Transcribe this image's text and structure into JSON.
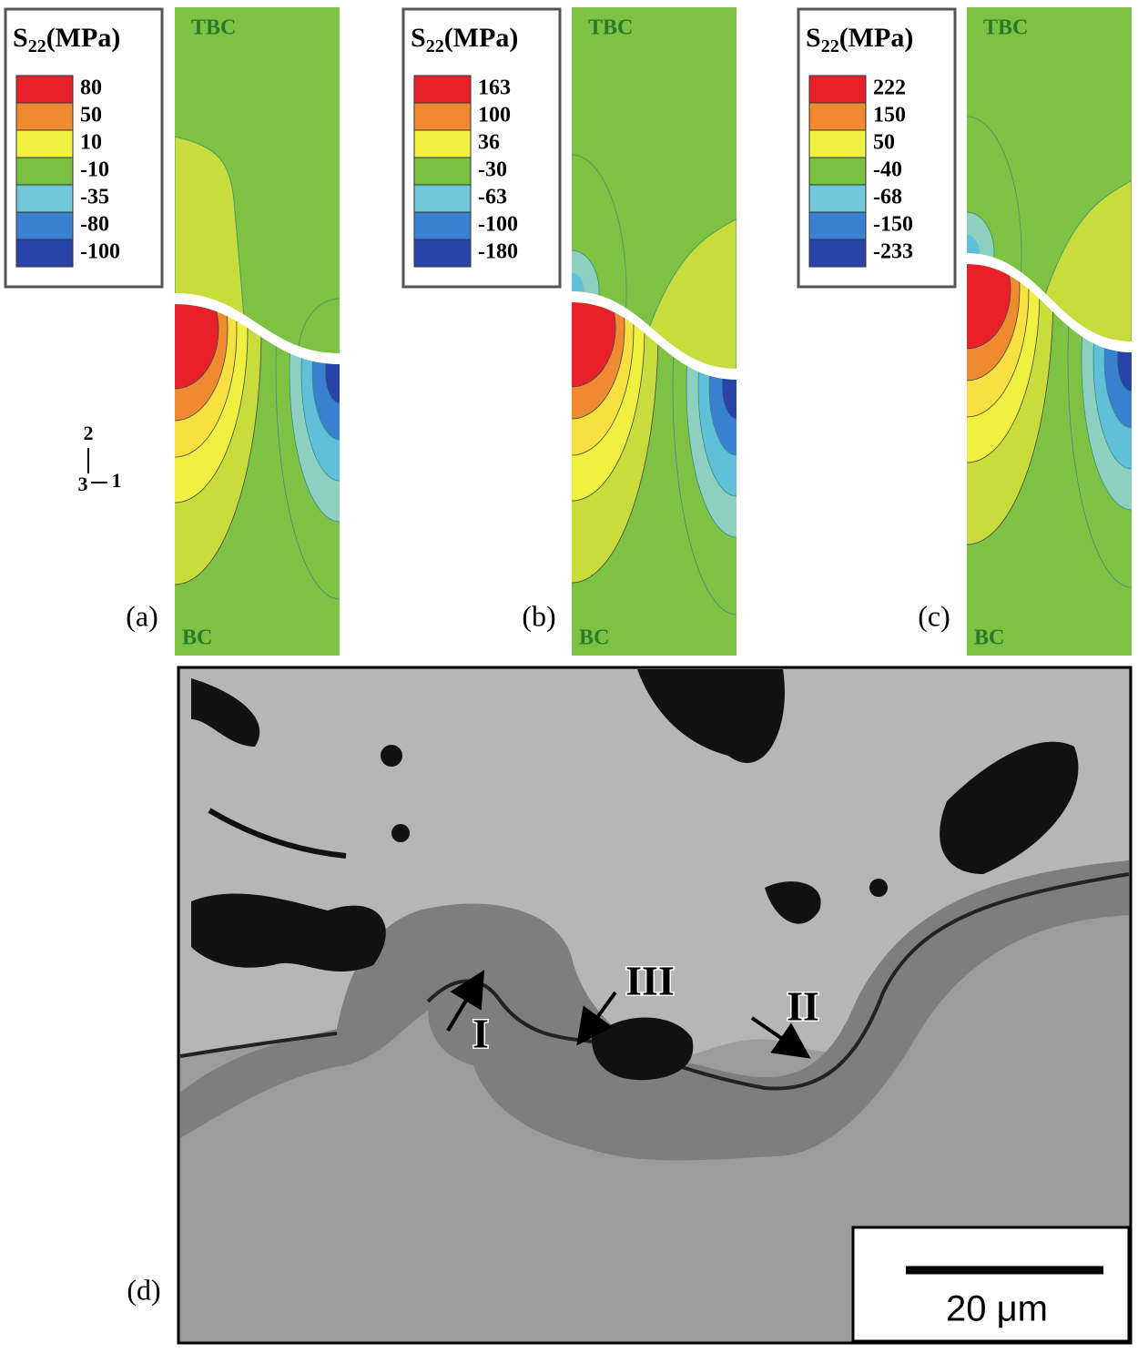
{
  "panels": [
    {
      "label": "(a)",
      "top_label": "TBC",
      "bottom_label": "BC",
      "legend": {
        "symbol": "S",
        "subscript": "22",
        "unit": "(MPa)",
        "values": [
          "80",
          "50",
          "10",
          "-10",
          "-35",
          "-80",
          "-100"
        ]
      }
    },
    {
      "label": "(b)",
      "top_label": "TBC",
      "bottom_label": "BC",
      "legend": {
        "symbol": "S",
        "subscript": "22",
        "unit": "(MPa)",
        "values": [
          "163",
          "100",
          "36",
          "-30",
          "-63",
          "-100",
          "-180"
        ]
      }
    },
    {
      "label": "(c)",
      "top_label": "TBC",
      "bottom_label": "BC",
      "legend": {
        "symbol": "S",
        "subscript": "22",
        "unit": "(MPa)",
        "values": [
          "222",
          "150",
          "50",
          "-40",
          "-68",
          "-150",
          "-233"
        ]
      }
    }
  ],
  "axes": {
    "vertical": "2",
    "out": "3",
    "horizontal": "1"
  },
  "micrograph": {
    "label": "(d)",
    "regions": [
      "I",
      "II",
      "III"
    ],
    "scale_bar": "20 μm"
  }
}
